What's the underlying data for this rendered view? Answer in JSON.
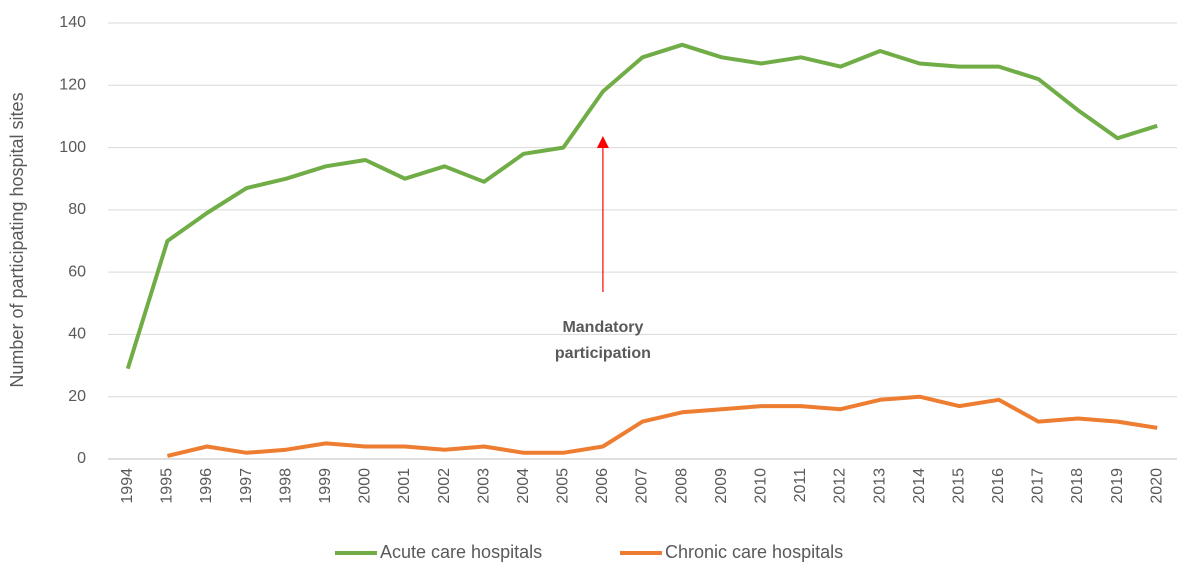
{
  "chart_data": {
    "type": "line",
    "y_axis_label": "Number of participating hospital sites",
    "categories": [
      "1994",
      "1995",
      "1996",
      "1997",
      "1998",
      "1999",
      "2000",
      "2001",
      "2002",
      "2003",
      "2004",
      "2005",
      "2006",
      "2007",
      "2008",
      "2009",
      "2010",
      "2011",
      "2012",
      "2013",
      "2014",
      "2015",
      "2016",
      "2017",
      "2018",
      "2019",
      "2020"
    ],
    "series": [
      {
        "name": "Acute care hospitals",
        "color": "#70ad47",
        "values": [
          29,
          70,
          79,
          87,
          90,
          94,
          96,
          90,
          94,
          89,
          98,
          100,
          118,
          129,
          133,
          129,
          127,
          129,
          126,
          131,
          127,
          126,
          126,
          122,
          112,
          103,
          107
        ]
      },
      {
        "name": "Chronic care hospitals",
        "color": "#ed7d31",
        "values": [
          null,
          1,
          4,
          2,
          3,
          5,
          4,
          4,
          3,
          4,
          2,
          2,
          4,
          12,
          15,
          16,
          17,
          17,
          16,
          19,
          20,
          17,
          19,
          12,
          13,
          12,
          10
        ]
      }
    ],
    "ylim": [
      0,
      140
    ],
    "yticks": [
      0,
      20,
      40,
      60,
      80,
      100,
      120,
      140
    ],
    "grid": true,
    "legend": "bottom",
    "annotation": {
      "lines": [
        "Mandatory",
        "participation"
      ],
      "x": "2006",
      "color": "#ff0000"
    }
  }
}
